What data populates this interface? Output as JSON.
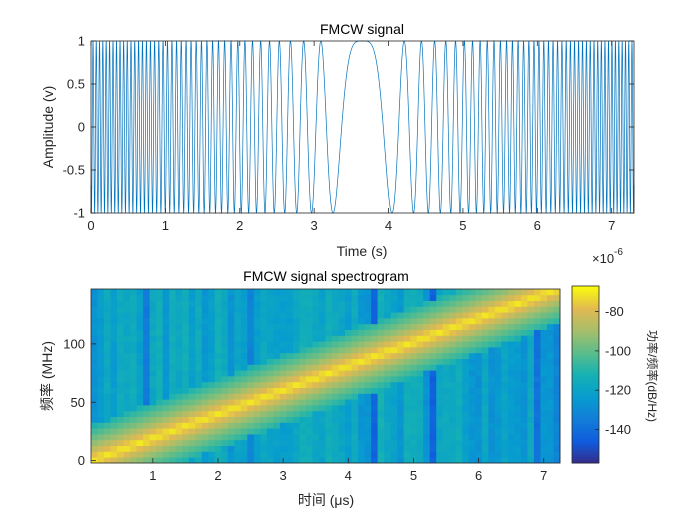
{
  "chart_data": [
    {
      "type": "line",
      "title": "FMCW signal",
      "xlabel": "Time (s)",
      "ylabel": "Amplitude (v)",
      "x_exponent_label": "×10",
      "x_exponent_power": "-6",
      "xlim": [
        0,
        7.3
      ],
      "ylim": [
        -1,
        1
      ],
      "xticks": [
        0,
        1,
        2,
        3,
        4,
        5,
        6,
        7
      ],
      "yticks": [
        1,
        0.5,
        0,
        -0.5,
        -1
      ],
      "ytick_labels": [
        "1",
        "0.5",
        "0",
        "-0.5",
        "-1"
      ],
      "grid": false,
      "series": [
        {
          "color": "#0072BD",
          "signal": "linear chirp, amplitude 1, plotted against time 0 to 7.3 (×10^-6 s)",
          "dense_center_x": 3.65
        }
      ]
    },
    {
      "type": "heatmap",
      "title": "FMCW signal spectrogram",
      "xlabel": "时间 (μs)",
      "ylabel": "频率 (MHz)",
      "xlim": [
        0.05,
        7.25
      ],
      "ylim": [
        -2,
        147
      ],
      "xticks": [
        1,
        2,
        3,
        4,
        5,
        6,
        7
      ],
      "yticks": [
        0,
        50,
        100
      ],
      "colorbar": {
        "label": "功率/频率(dB/Hz)",
        "ticks": [
          -80,
          -100,
          -120,
          -140
        ],
        "range": [
          -157,
          -67
        ],
        "colormap": "parula"
      },
      "ridge": {
        "start": [
          0.05,
          0
        ],
        "end": [
          7.1,
          145
        ],
        "peak_value": -70,
        "background_value": -120
      },
      "grid": false
    }
  ]
}
